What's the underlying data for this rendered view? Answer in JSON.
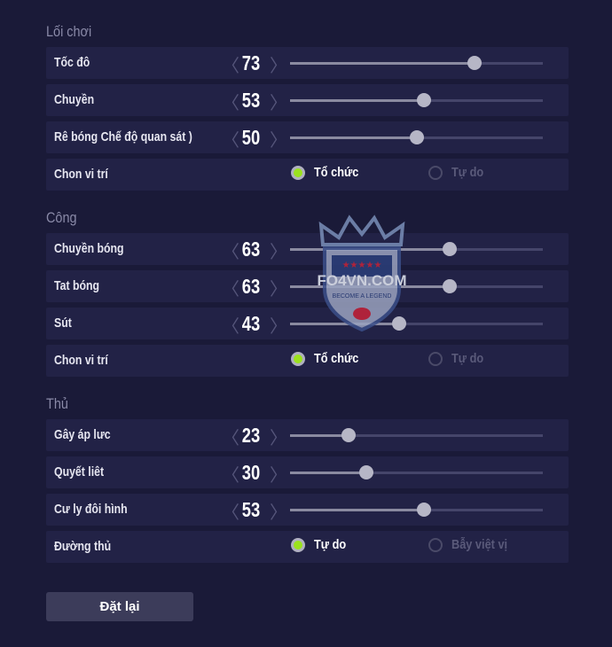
{
  "sections": [
    {
      "title": "Lối chơi",
      "sliders": [
        {
          "label": "Tốc đô",
          "value": 73
        },
        {
          "label": "Chuyền",
          "value": 53
        },
        {
          "label": "Rê bóng Chế độ quan sát )",
          "value": 50
        }
      ],
      "radio": {
        "label": "Chon vi trí",
        "options": [
          "Tổ chức",
          "Tự do"
        ],
        "selected": 0
      }
    },
    {
      "title": "Công",
      "sliders": [
        {
          "label": "Chuyền bóng",
          "value": 63
        },
        {
          "label": "Tat bóng",
          "value": 63
        },
        {
          "label": "Sút",
          "value": 43
        }
      ],
      "radio": {
        "label": "Chon vi trí",
        "options": [
          "Tổ chức",
          "Tự do"
        ],
        "selected": 0
      }
    },
    {
      "title": "Thủ",
      "sliders": [
        {
          "label": "Gây áp lưc",
          "value": 23
        },
        {
          "label": "Quyết liêt",
          "value": 30
        },
        {
          "label": "Cư ly đôi hình",
          "value": 53
        }
      ],
      "radio": {
        "label": "Đường thủ",
        "options": [
          "Tự do",
          "Bẫy việt vị"
        ],
        "selected": 0
      }
    }
  ],
  "slider_range": [
    0,
    100
  ],
  "reset_label": "Đặt lại",
  "watermark": {
    "name": "FO4VN.COM",
    "tagline": "BECOME A LEGEND"
  },
  "icons": {
    "decrease": "chevron-left-icon",
    "increase": "chevron-right-icon"
  },
  "colors": {
    "background": "#1a1a38",
    "row": "#222246",
    "radio_selected": "#9be21d"
  }
}
